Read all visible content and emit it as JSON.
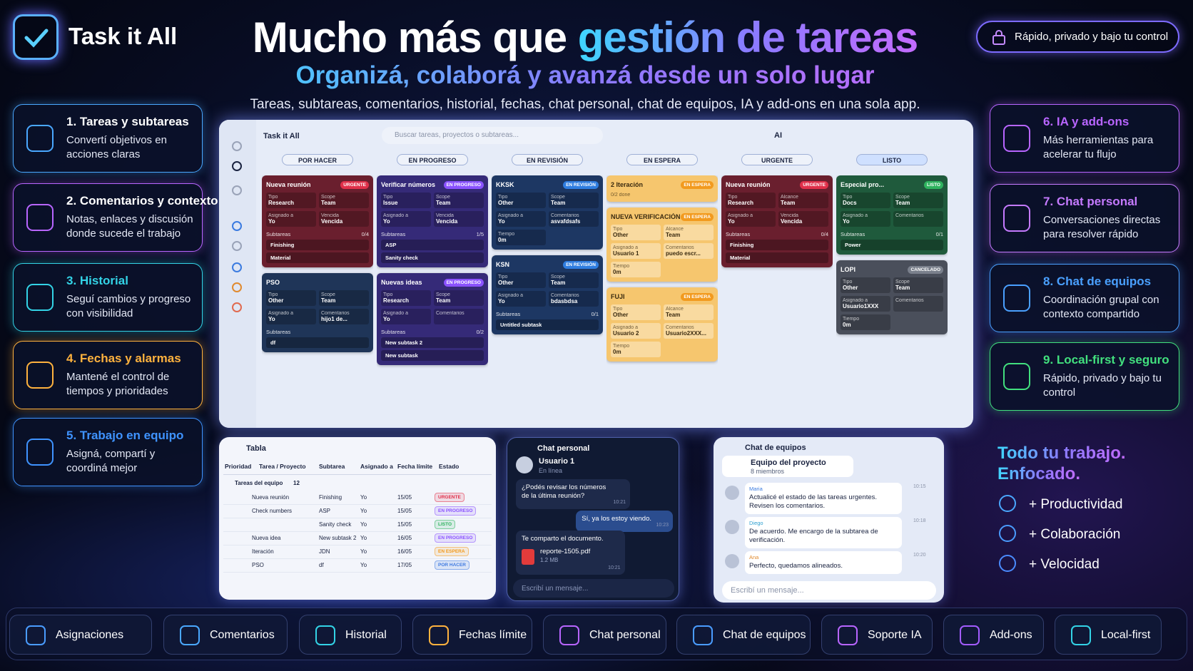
{
  "header": {
    "brand": "Task it All",
    "title_plain": "Mucho más que ",
    "title_accent": "gestión de tareas",
    "subtitle": "Organizá, colaborá y avanzá desde un solo lugar",
    "tagline": "Tareas, subtareas, comentarios, historial, fechas, chat personal, chat de equipos, IA y add-ons en una sola app.",
    "badge": "Rápido, privado y bajo tu control"
  },
  "left_features": [
    {
      "title": "1. Tareas y subtareas",
      "desc": "Convertí objetivos en acciones claras",
      "color": "#4aa8ff"
    },
    {
      "title": "2. Comentarios y contexto",
      "desc": "Notas, enlaces y discusión donde sucede el trabajo",
      "color": "#b865ff"
    },
    {
      "title": "3. Historial",
      "desc": "Seguí cambios y progreso con visibilidad",
      "color": "#33d3e6"
    },
    {
      "title": "4. Fechas y alarmas",
      "desc": "Mantené el control de tiempos y prioridades",
      "color": "#ffb23e"
    },
    {
      "title": "5. Trabajo en equipo",
      "desc": "Asigná, compartí y coordiná mejor",
      "color": "#3f93ff"
    }
  ],
  "right_features": [
    {
      "title": "6. IA y add-ons",
      "desc": "Más herramientas para acelerar tu flujo",
      "color": "#b865ff"
    },
    {
      "title": "7. Chat personal",
      "desc": "Conversaciones directas para resolver rápido",
      "color": "#c57aff"
    },
    {
      "title": "8. Chat de equipos",
      "desc": "Coordinación grupal con contexto compartido",
      "color": "#4aa0ff"
    },
    {
      "title": "9. Local-first y seguro",
      "desc": "Rápido, privado y bajo tu control",
      "color": "#42e07e"
    }
  ],
  "board": {
    "app_title": "Task it All",
    "search": "Buscar tareas, proyectos o subtareas...",
    "ai": "AI",
    "columns": [
      {
        "header": "POR HACER",
        "cards": [
          {
            "title": "Nueva reunión",
            "badge": "URGENTE",
            "badge_color": "#e0304a",
            "color": "#6a1f2e",
            "fields": [
              [
                "Tipo",
                "Research"
              ],
              [
                "Scope",
                "Team"
              ],
              [
                "Asignado a",
                "Yo"
              ],
              [
                "Vencida",
                "Vencida"
              ]
            ],
            "sub_label": "Subtareas",
            "sub_count": "0/4",
            "subtasks": [
              "Finishing",
              "Material"
            ]
          },
          {
            "title": "PSO",
            "color": "#1f3558",
            "fields": [
              [
                "Tipo",
                "Other"
              ],
              [
                "Scope",
                "Team"
              ],
              [
                "Asignado a",
                "Yo"
              ],
              [
                "Comentarios",
                "hijo1 de..."
              ]
            ],
            "sub_label": "Subtareas",
            "subtasks": [
              "df"
            ]
          }
        ]
      },
      {
        "header": "EN PROGRESO",
        "cards": [
          {
            "title": "Verificar números",
            "badge": "EN PROGRESO",
            "badge_color": "#8a52ff",
            "color": "#352a78",
            "fields": [
              [
                "Tipo",
                "Issue"
              ],
              [
                "Scope",
                "Team"
              ],
              [
                "Asignado a",
                "Yo"
              ],
              [
                "Vencida",
                "Vencida"
              ]
            ],
            "sub_label": "Subtareas",
            "sub_count": "1/5",
            "subtasks": [
              "ASP",
              "Sanity check"
            ]
          },
          {
            "title": "Nuevas ideas",
            "badge": "EN PROGRESO",
            "badge_color": "#8a52ff",
            "color": "#352a78",
            "fields": [
              [
                "Tipo",
                "Research"
              ],
              [
                "Scope",
                "Team"
              ],
              [
                "Asignado a",
                "Yo"
              ],
              [
                "Comentarios"
              ]
            ],
            "sub_label": "Subtareas",
            "sub_count": "0/2",
            "subtasks": [
              "New subtask 2",
              "New subtask"
            ]
          }
        ]
      },
      {
        "header": "EN REVISIÓN",
        "cards": [
          {
            "title": "KKSK",
            "badge": "EN REVISIÓN",
            "badge_color": "#2f7de0",
            "color": "#1d3763",
            "fields": [
              [
                "Tipo",
                "Other"
              ],
              [
                "Scope",
                "Team"
              ],
              [
                "Asignado a",
                "Yo"
              ],
              [
                "Comentarios",
                "asvafdsafs"
              ],
              [
                "Tiempo",
                "0m"
              ]
            ]
          },
          {
            "title": "KSN",
            "badge": "EN REVISIÓN",
            "badge_color": "#2f7de0",
            "color": "#1d3763",
            "fields": [
              [
                "Tipo",
                "Other"
              ],
              [
                "Scope",
                "Team"
              ],
              [
                "Asignado a",
                "Yo"
              ],
              [
                "Comentarios",
                "bdasbdsa"
              ]
            ],
            "sub_label": "Subtareas",
            "sub_count": "0/1",
            "subtasks": [
              "Untitled subtask"
            ]
          }
        ]
      },
      {
        "header": "EN ESPERA",
        "cards": [
          {
            "title": "2  Iteración",
            "badge": "EN ESPERA",
            "badge_color": "#f29a1e",
            "color": "#f6c66e",
            "light": true,
            "note": "0/2 done"
          },
          {
            "title": "NUEVA VERIFICACIÓN",
            "badge": "EN ESPERA",
            "badge_color": "#f29a1e",
            "color": "#f6c66e",
            "light": true,
            "fields": [
              [
                "Tipo",
                "Other"
              ],
              [
                "Alcance",
                "Team"
              ],
              [
                "Asignado a",
                "Usuario 1"
              ],
              [
                "Comentarios",
                "puedo escr..."
              ],
              [
                "Tiempo",
                "0m"
              ]
            ]
          },
          {
            "title": "FUJI",
            "badge": "EN ESPERA",
            "badge_color": "#f29a1e",
            "color": "#f6c66e",
            "light": true,
            "fields": [
              [
                "Tipo",
                "Other"
              ],
              [
                "Alcance",
                "Team"
              ],
              [
                "Asignado a",
                "Usuario 2"
              ],
              [
                "Comentarios",
                "Usuario2XXX..."
              ],
              [
                "Tiempo",
                "0m"
              ]
            ]
          }
        ]
      },
      {
        "header": "URGENTE",
        "cards": [
          {
            "title": "Nueva reunión",
            "badge": "URGENTE",
            "badge_color": "#e0304a",
            "color": "#6a1f2e",
            "fields": [
              [
                "Tipo",
                "Research"
              ],
              [
                "Alcance",
                "Team"
              ],
              [
                "Asignado a",
                "Yo"
              ],
              [
                "Vencida",
                "Vencida"
              ]
            ],
            "sub_label": "Subtareas",
            "sub_count": "0/4",
            "subtasks": [
              "Finishing",
              "Material"
            ]
          }
        ]
      },
      {
        "header": "LISTO",
        "cards": [
          {
            "title": "Especial pro...",
            "badge": "LISTO",
            "badge_color": "#2fb35e",
            "color": "#1f5a3c",
            "fields": [
              [
                "Tipo",
                "Docs"
              ],
              [
                "Scope",
                "Team"
              ],
              [
                "Asignado a",
                "Yo"
              ],
              [
                "Comentarios"
              ]
            ],
            "sub_label": "Subtareas",
            "sub_count": "0/1",
            "subtasks": [
              "Power"
            ]
          },
          {
            "title": "LOPI",
            "badge": "CANCELADO",
            "badge_color": "#7a808c",
            "color": "#4a4f5b",
            "fields": [
              [
                "Tipo",
                "Other"
              ],
              [
                "Scope",
                "Team"
              ],
              [
                "Asignado a",
                "Usuario1XXX"
              ],
              [
                "Comentarios"
              ],
              [
                "Tiempo",
                "0m"
              ]
            ]
          }
        ]
      }
    ]
  },
  "table": {
    "title": "Tabla",
    "headers": [
      "Prioridad",
      "Tarea / Proyecto",
      "Subtarea",
      "Asignado a",
      "Fecha límite",
      "Estado"
    ],
    "group": "Tareas del equipo",
    "group_count": "12",
    "rows": [
      {
        "task": "Nueva reunión",
        "subtask": "Finishing",
        "assignee": "Yo",
        "date": "15/05",
        "status": "URGENTE",
        "status_color": "#e0304a"
      },
      {
        "task": "Check numbers",
        "subtask": "ASP",
        "assignee": "Yo",
        "date": "15/05",
        "status": "EN PROGRESO",
        "status_color": "#8a52ff"
      },
      {
        "subtask": "Sanity check",
        "assignee": "Yo",
        "date": "15/05",
        "status": "LISTO",
        "status_color": "#2fb35e"
      },
      {
        "task": "Nueva idea",
        "subtask": "New subtask 2",
        "assignee": "Yo",
        "date": "16/05",
        "status": "EN PROGRESO",
        "status_color": "#8a52ff"
      },
      {
        "task": "Iteración",
        "subtask": "JDN",
        "assignee": "Yo",
        "date": "16/05",
        "status": "EN ESPERA",
        "status_color": "#f29a1e"
      },
      {
        "task": "PSO",
        "subtask": "df",
        "assignee": "Yo",
        "date": "17/05",
        "status": "POR HACER",
        "status_color": "#3f7ae0"
      }
    ]
  },
  "chat_personal": {
    "title": "Chat personal",
    "user": "Usuario 1",
    "status": "En línea",
    "messages": [
      {
        "text": "¿Podés revisar los números de la última reunión?",
        "time": "10:21",
        "side": "in"
      },
      {
        "text": "Sí, ya los estoy viendo.",
        "time": "10:23",
        "side": "out"
      },
      {
        "text": "Te comparto el documento.",
        "file": "reporte-1505.pdf",
        "size": "1.2 MB",
        "time": "10:21",
        "side": "in"
      }
    ],
    "placeholder": "Escribí un mensaje..."
  },
  "chat_team": {
    "title": "Chat de equipos",
    "group": "Equipo del proyecto",
    "members": "8 miembros",
    "messages": [
      {
        "name": "Maria",
        "text": "Actualicé el estado de las tareas urgentes. Revisen los comentarios.",
        "time": "10:15"
      },
      {
        "name": "Diego",
        "text": "De acuerdo. Me encargo de la subtarea de verificación.",
        "time": "10:18"
      },
      {
        "name": "Ana",
        "text": "Perfecto, quedamos alineados.",
        "time": "10:20"
      }
    ],
    "placeholder": "Escribí un mensaje..."
  },
  "promo": {
    "title_lines": [
      "Todo tu trabajo.",
      "Enfocado."
    ],
    "items": [
      "+ Productividad",
      "+ Colaboración",
      "+ Velocidad"
    ]
  },
  "bottom_bar": [
    {
      "label": "Asignaciones",
      "color": "#4a9cff"
    },
    {
      "label": "Comentarios",
      "color": "#4aa8ff"
    },
    {
      "label": "Historial",
      "color": "#33d3e6"
    },
    {
      "label": "Fechas límite",
      "color": "#ffb23e"
    },
    {
      "label": "Chat personal",
      "color": "#b865ff"
    },
    {
      "label": "Chat de equipos",
      "color": "#4a9cff"
    },
    {
      "label": "Soporte IA",
      "color": "#b865ff"
    },
    {
      "label": "Add-ons",
      "color": "#a35cff"
    },
    {
      "label": "Local-first",
      "color": "#33d3e6"
    }
  ]
}
